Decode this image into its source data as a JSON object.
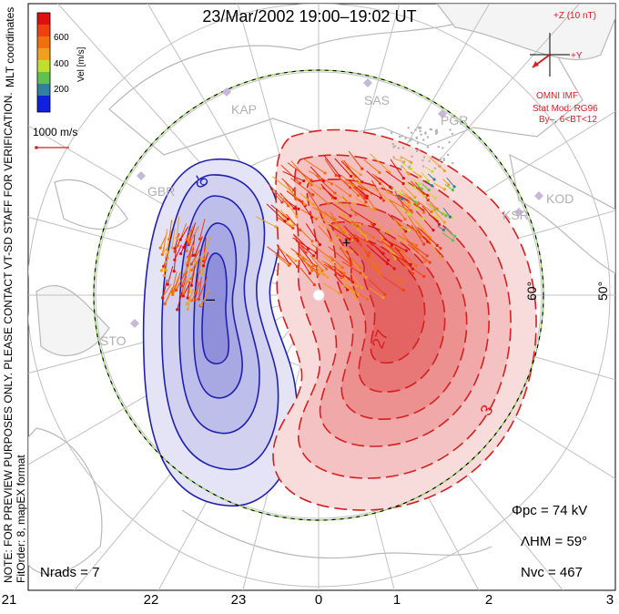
{
  "title": "23/Mar/2002  19:00–19:02  UT",
  "side_notes": {
    "line1": "NOTE: FOR PREVIEW PURPOSES ONLY. PLEASE CONTACT VT-SD STAFF FOR VERIFICATION.",
    "line2": "FitOrder: 8, mapEX format"
  },
  "mlt_coordinates_label": "MLT coordinates",
  "velocity_legend": {
    "axis_label": "Vel [m/s]",
    "ticks": [
      "600",
      "400",
      "200"
    ],
    "colors": [
      "#e01010",
      "#f06010",
      "#f0a020",
      "#e0e020",
      "#80d040",
      "#40a060",
      "#3060a0",
      "#1020e0"
    ]
  },
  "vector_scale_label": "1000 m/s",
  "imf": {
    "z_label": "+Z (10 nT)",
    "y_label": "+Y",
    "source": "OMNI IMF",
    "model": "Stat Mod: RG96",
    "model_params": "By–, 6<BT<12"
  },
  "stations": [
    "KAP",
    "SAS",
    "PGR",
    "GBR",
    "KOD",
    "KSR",
    "STO"
  ],
  "latitude_labels": [
    "60°",
    "50°"
  ],
  "contour_labels": [
    "-9",
    "27",
    "3"
  ],
  "min_marker": "–",
  "max_marker": "+",
  "stats": {
    "phi_pc": "Φpc  =  74  kV",
    "lambda_hm": "ΛHM  =  59°",
    "n_vc": "Nvc  =  467",
    "n_rads": "Nrads  =  7"
  },
  "mlt_ticks": [
    "21",
    "22",
    "23",
    "0",
    "1",
    "2",
    "3"
  ],
  "colors": {
    "negative_cell": "#2020b0",
    "positive_cell": "#d42020",
    "map_lines": "#c0c0c0",
    "boundary_dash": "#80d040"
  }
}
